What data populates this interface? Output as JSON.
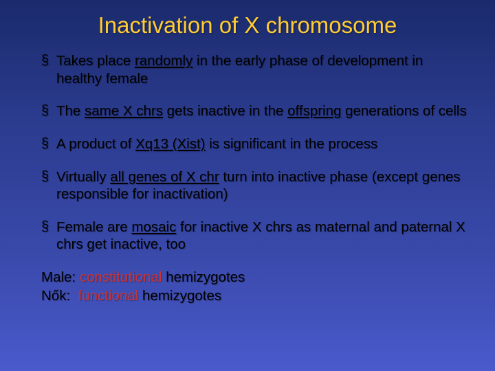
{
  "title": "Inactivation of X chromosome",
  "bullets": [
    {
      "pre": "Takes place ",
      "em1": "randomly",
      "mid1": " in the early phase of development in healthy female"
    },
    {
      "pre": "The ",
      "em1": "same X chrs",
      "mid1": " gets inactive in the ",
      "em2": "offspring",
      "mid2": " generations of cells"
    },
    {
      "pre": "A product of ",
      "em1": "Xq13 (Xist)",
      "mid1": " is significant in the process"
    },
    {
      "pre": "Virtually ",
      "em1": "all genes of X chr",
      "mid1": " turn into inactive phase (except genes responsible for inactivation)"
    },
    {
      "pre": "Female are ",
      "em1": "mosaic",
      "mid1": " for inactive X chrs as maternal and paternal X chrs get inactive, too"
    }
  ],
  "footer": {
    "line1_label": "Male:",
    "line1_em": "constitutional",
    "line1_rest": " hemizygotes",
    "line2_label": "Nők:",
    "line2_em": "functional",
    "line2_rest": " hemizygotes"
  },
  "colors": {
    "title": "#ffcc33",
    "emphasis": "#cc3333",
    "bg_top": "#1a2a6c",
    "bg_bottom": "#4a5acc"
  }
}
